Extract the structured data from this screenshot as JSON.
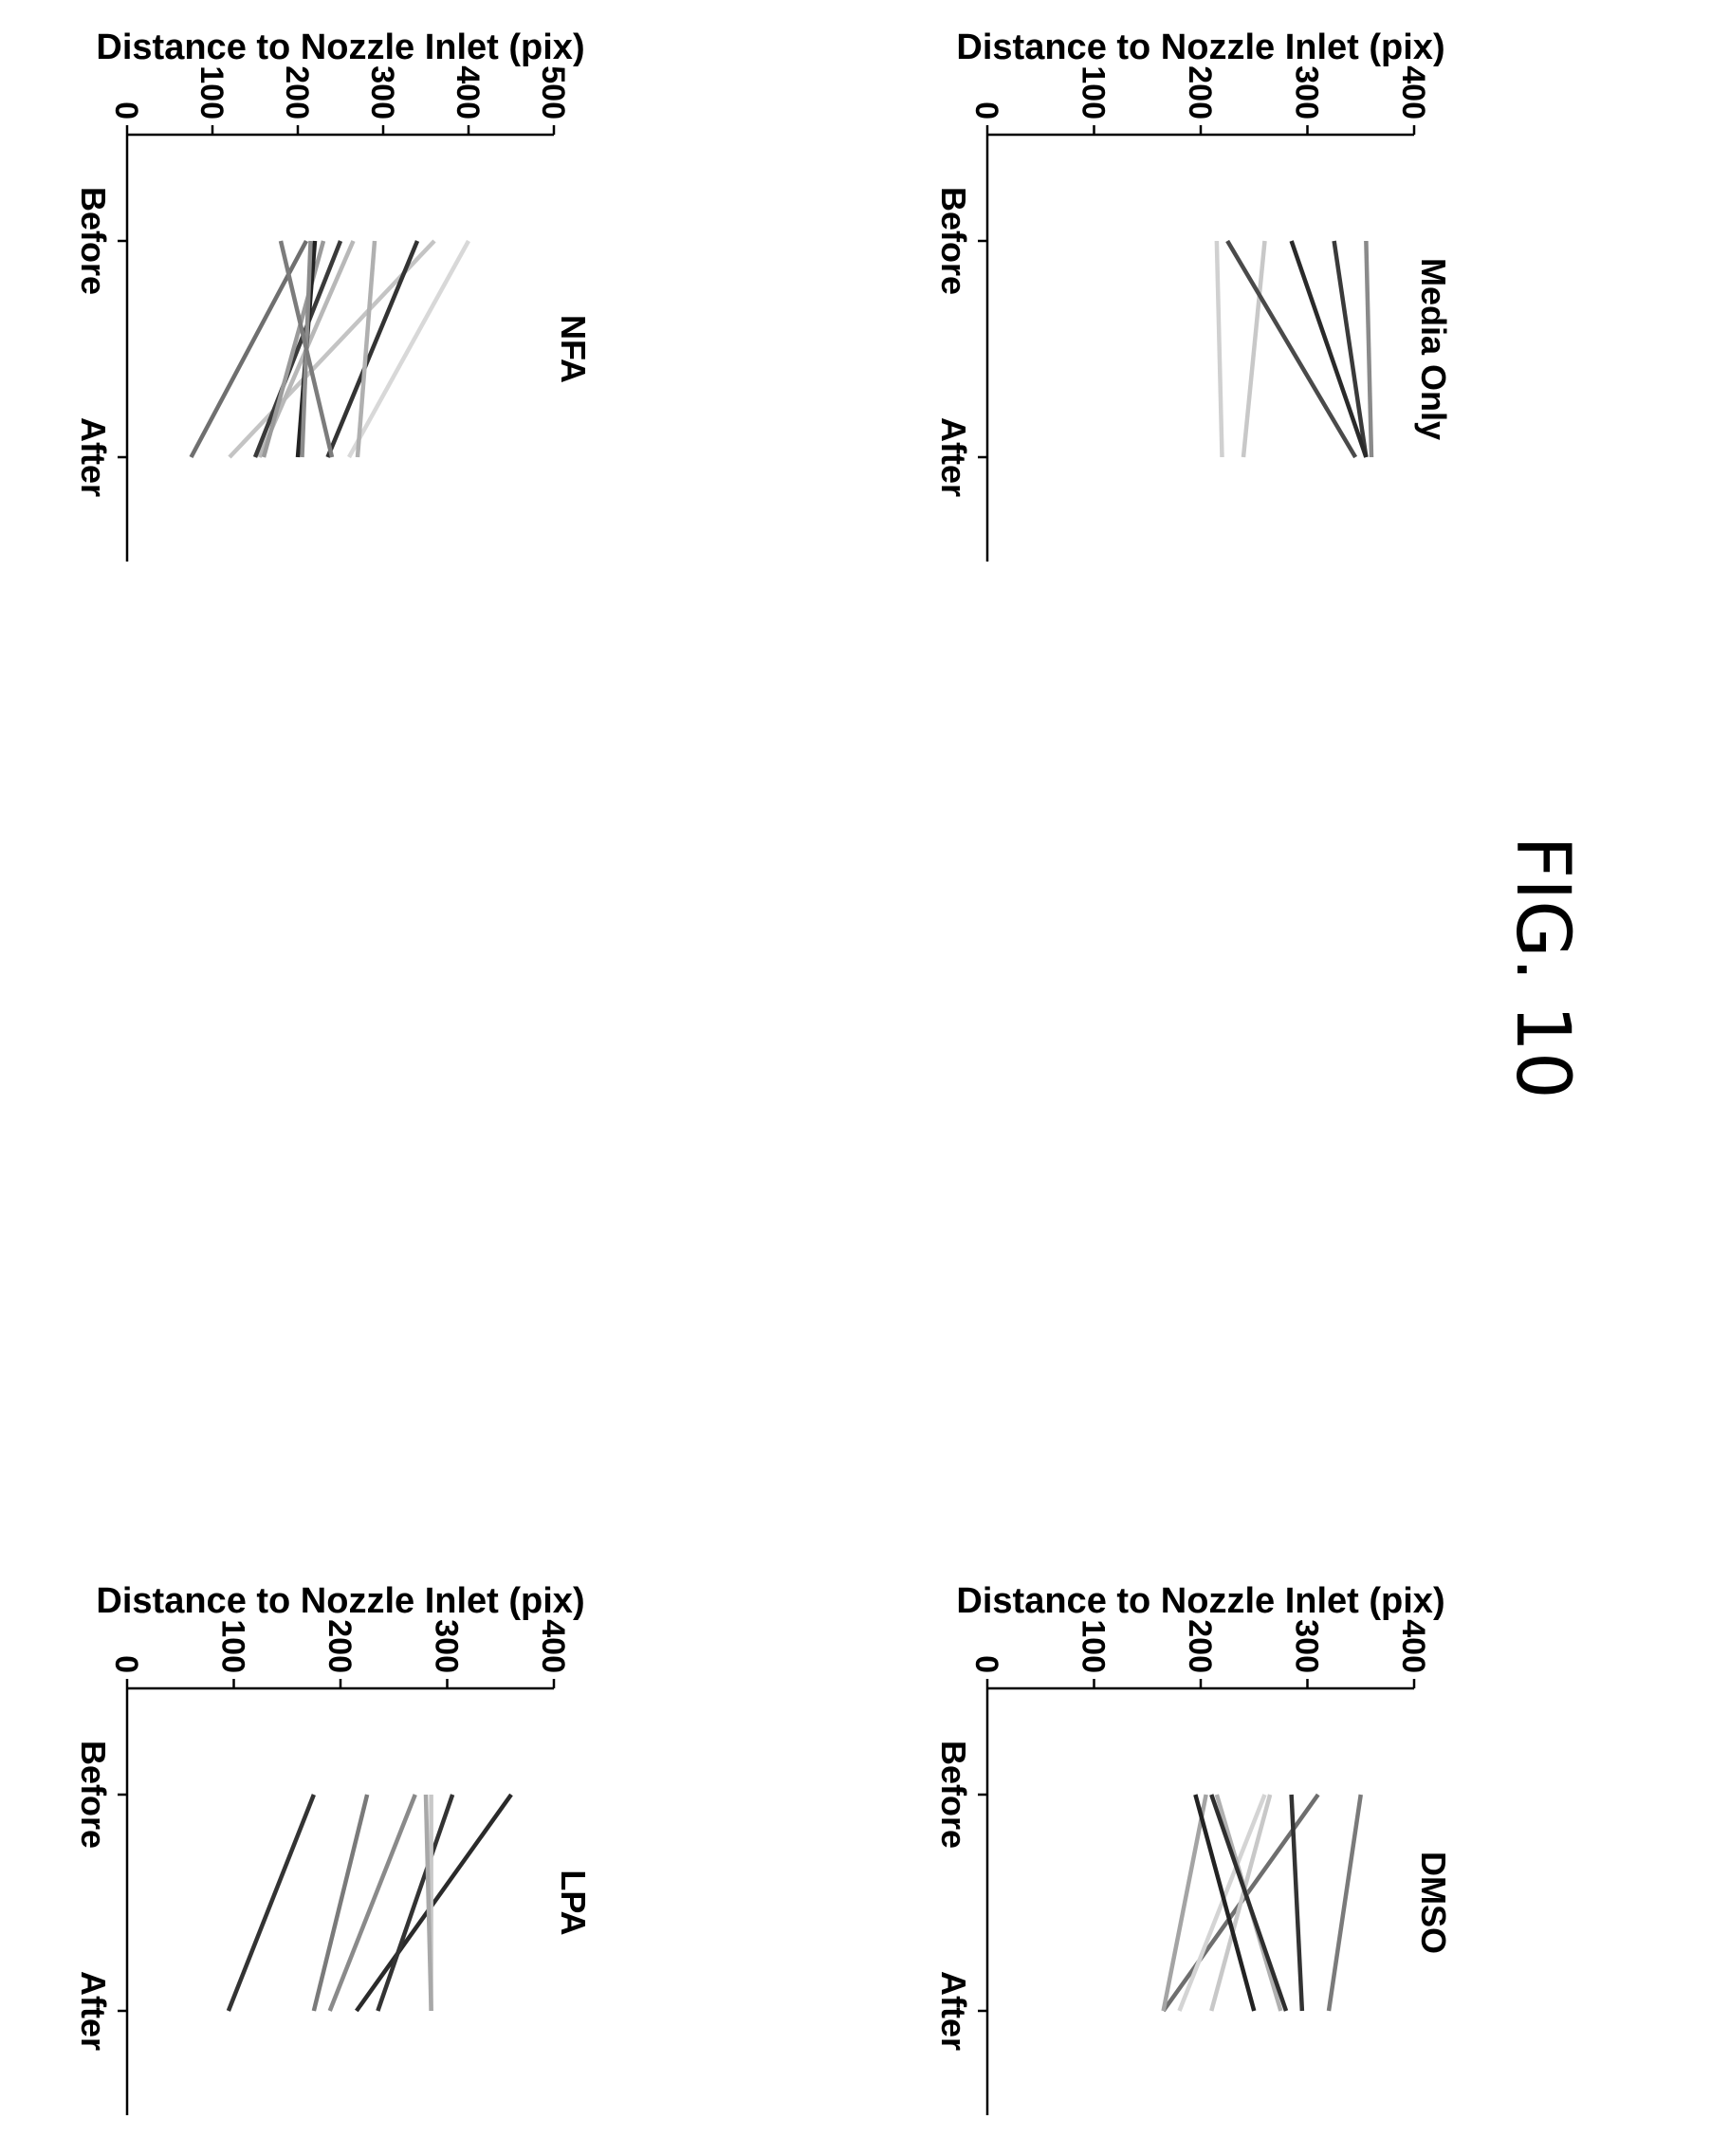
{
  "figure_label": "FIG. 10",
  "chart_data": [
    {
      "type": "line",
      "title": "LPA",
      "xlabel": "",
      "ylabel": "Distance to Nozzle Inlet (pix)",
      "categories": [
        "Before",
        "After"
      ],
      "ylim": [
        0,
        400
      ],
      "yticks": [
        0,
        100,
        200,
        300,
        400
      ],
      "series": [
        {
          "values": [
            360,
            215
          ],
          "color": "#2a2a2a"
        },
        {
          "values": [
            305,
            235
          ],
          "color": "#333333"
        },
        {
          "values": [
            285,
            285
          ],
          "color": "#c8c8c8"
        },
        {
          "values": [
            280,
            285
          ],
          "color": "#a8a8a8"
        },
        {
          "values": [
            270,
            190
          ],
          "color": "#8a8a8a"
        },
        {
          "values": [
            225,
            175
          ],
          "color": "#7a7a7a"
        },
        {
          "values": [
            175,
            95
          ],
          "color": "#333333"
        }
      ]
    },
    {
      "type": "line",
      "title": "NFA",
      "xlabel": "",
      "ylabel": "Distance to Nozzle Inlet (pix)",
      "categories": [
        "Before",
        "After"
      ],
      "ylim": [
        0,
        500
      ],
      "yticks": [
        0,
        100,
        200,
        300,
        400,
        500
      ],
      "series": [
        {
          "values": [
            400,
            260
          ],
          "color": "#d8d8d8"
        },
        {
          "values": [
            360,
            120
          ],
          "color": "#c4c4c4"
        },
        {
          "values": [
            340,
            235
          ],
          "color": "#333333"
        },
        {
          "values": [
            290,
            270
          ],
          "color": "#b0b0b0"
        },
        {
          "values": [
            265,
            155
          ],
          "color": "#b8b8b8"
        },
        {
          "values": [
            250,
            150
          ],
          "color": "#3a3a3a"
        },
        {
          "values": [
            230,
            160
          ],
          "color": "#9a9a9a"
        },
        {
          "values": [
            220,
            200
          ],
          "color": "#222222"
        },
        {
          "values": [
            215,
            205
          ],
          "color": "#8c8c8c"
        },
        {
          "values": [
            210,
            75
          ],
          "color": "#6f6f6f"
        },
        {
          "values": [
            180,
            240
          ],
          "color": "#7c7c7c"
        }
      ]
    },
    {
      "type": "line",
      "title": "DMSO",
      "xlabel": "",
      "ylabel": "Distance to Nozzle Inlet (pix)",
      "categories": [
        "Before",
        "After"
      ],
      "ylim": [
        0,
        400
      ],
      "yticks": [
        0,
        100,
        200,
        300,
        400
      ],
      "series": [
        {
          "values": [
            350,
            320
          ],
          "color": "#7a7a7a"
        },
        {
          "values": [
            310,
            165
          ],
          "color": "#6e6e6e"
        },
        {
          "values": [
            285,
            295
          ],
          "color": "#333333"
        },
        {
          "values": [
            265,
            210
          ],
          "color": "#c8c8c8"
        },
        {
          "values": [
            260,
            180
          ],
          "color": "#d4d4d4"
        },
        {
          "values": [
            215,
            275
          ],
          "color": "#b0b0b0"
        },
        {
          "values": [
            210,
            280
          ],
          "color": "#2e2e2e"
        },
        {
          "values": [
            205,
            165
          ],
          "color": "#a4a4a4"
        },
        {
          "values": [
            195,
            250
          ],
          "color": "#222222"
        }
      ]
    },
    {
      "type": "line",
      "title": "Media Only",
      "xlabel": "",
      "ylabel": "Distance to Nozzle Inlet (pix)",
      "categories": [
        "Before",
        "After"
      ],
      "ylim": [
        0,
        400
      ],
      "yticks": [
        0,
        100,
        200,
        300,
        400
      ],
      "series": [
        {
          "values": [
            355,
            360
          ],
          "color": "#8a8a8a"
        },
        {
          "values": [
            325,
            355
          ],
          "color": "#3a3a3a"
        },
        {
          "values": [
            285,
            355
          ],
          "color": "#2a2a2a"
        },
        {
          "values": [
            260,
            240
          ],
          "color": "#c8c8c8"
        },
        {
          "values": [
            225,
            345
          ],
          "color": "#4a4a4a"
        },
        {
          "values": [
            215,
            220
          ],
          "color": "#d0d0d0"
        }
      ]
    }
  ]
}
